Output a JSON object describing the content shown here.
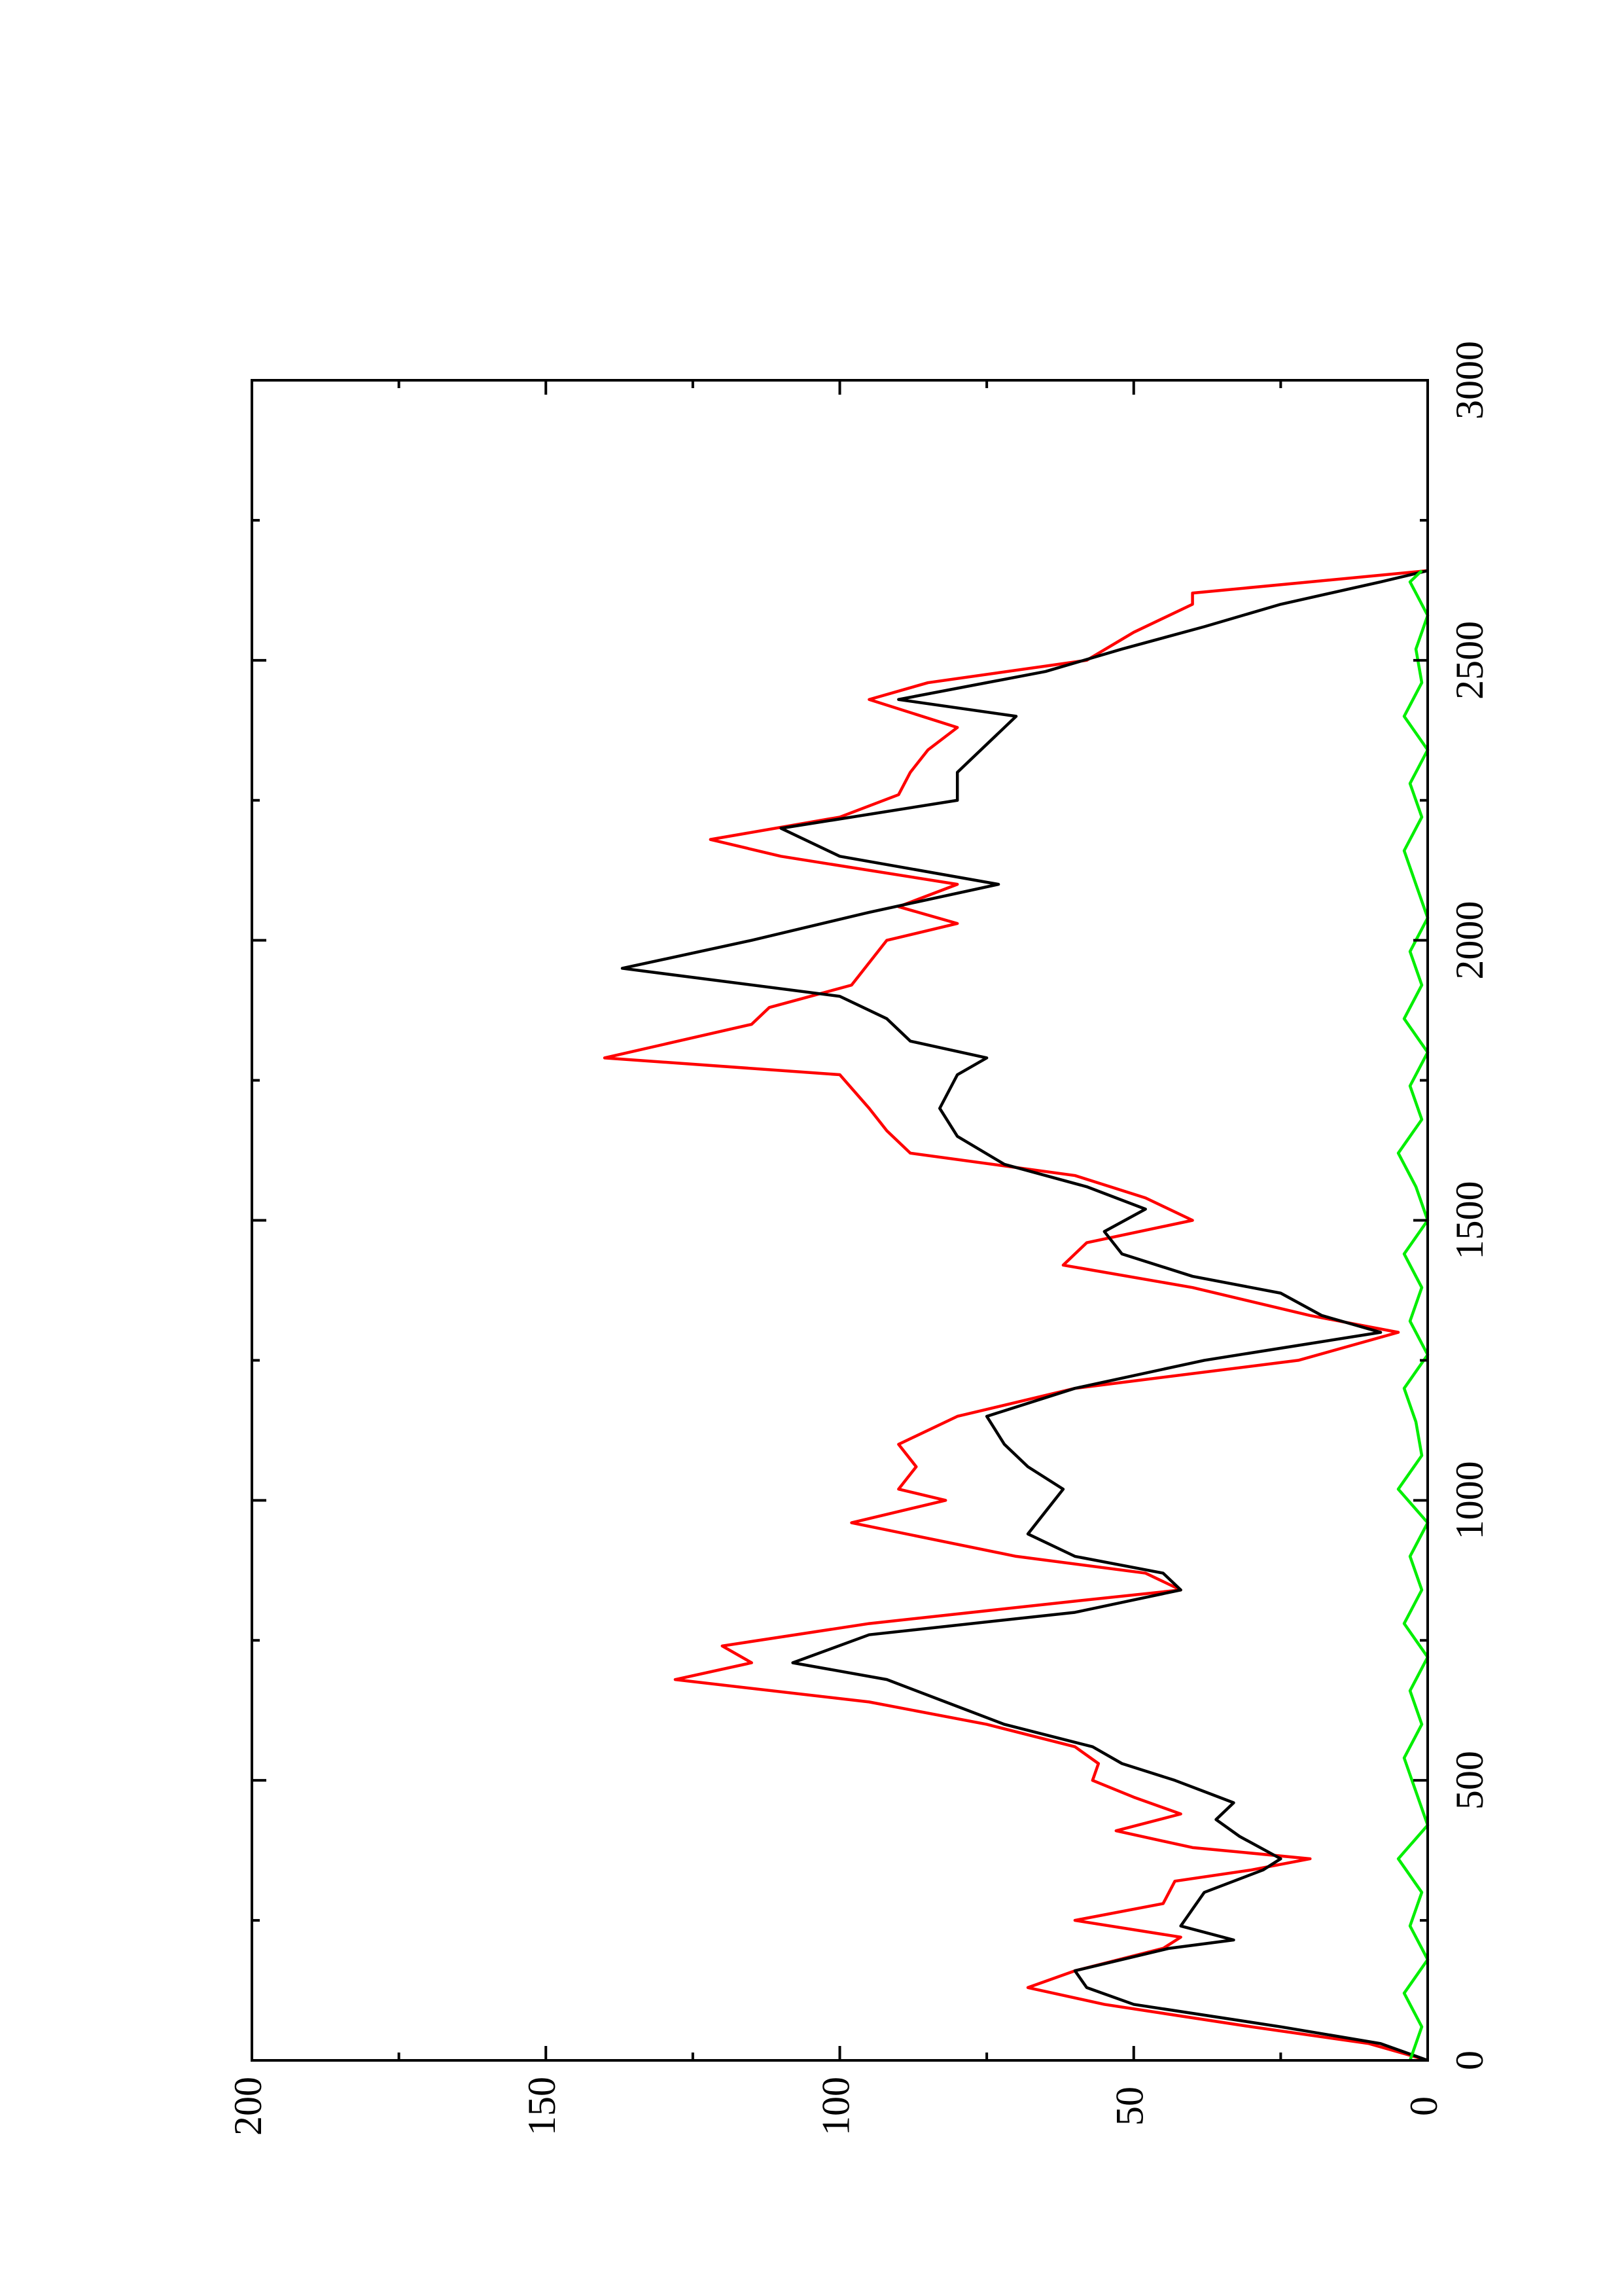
{
  "chart_data": {
    "type": "line",
    "xlim": [
      0,
      3000
    ],
    "xticks": [
      0,
      500,
      1000,
      1500,
      2000,
      2500,
      3000
    ],
    "ylim": [
      0,
      200
    ],
    "yticks": [
      0,
      50,
      100,
      150,
      200
    ],
    "series": [
      {
        "color": "#ff0000",
        "x": [
          0,
          30,
          60,
          100,
          130,
          160,
          200,
          220,
          250,
          280,
          320,
          340,
          360,
          380,
          410,
          440,
          470,
          500,
          530,
          560,
          600,
          640,
          680,
          710,
          740,
          780,
          820,
          840,
          870,
          900,
          960,
          1000,
          1020,
          1060,
          1100,
          1150,
          1200,
          1250,
          1300,
          1330,
          1380,
          1420,
          1460,
          1500,
          1540,
          1580,
          1620,
          1660,
          1700,
          1760,
          1790,
          1850,
          1880,
          1920,
          2000,
          2030,
          2060,
          2100,
          2150,
          2180,
          2220,
          2260,
          2300,
          2340,
          2380,
          2430,
          2460,
          2500,
          2550,
          2600,
          2620,
          2660
        ],
        "values": [
          0,
          10,
          30,
          55,
          68,
          60,
          45,
          42,
          60,
          45,
          43,
          30,
          20,
          40,
          53,
          42,
          50,
          57,
          56,
          60,
          75,
          95,
          128,
          115,
          120,
          95,
          60,
          42,
          48,
          70,
          98,
          82,
          90,
          87,
          90,
          80,
          60,
          22,
          5,
          20,
          40,
          62,
          58,
          40,
          48,
          60,
          88,
          92,
          95,
          100,
          140,
          115,
          112,
          98,
          92,
          80,
          90,
          80,
          110,
          122,
          100,
          90,
          88,
          85,
          80,
          95,
          85,
          58,
          50,
          40,
          40,
          0
        ]
      },
      {
        "color": "#000000",
        "x": [
          0,
          30,
          60,
          100,
          130,
          160,
          200,
          215,
          240,
          270,
          300,
          340,
          360,
          400,
          430,
          460,
          480,
          500,
          530,
          560,
          600,
          640,
          680,
          710,
          760,
          800,
          840,
          870,
          900,
          940,
          980,
          1020,
          1060,
          1100,
          1150,
          1200,
          1250,
          1280,
          1300,
          1330,
          1370,
          1400,
          1440,
          1480,
          1520,
          1560,
          1600,
          1650,
          1700,
          1760,
          1790,
          1820,
          1860,
          1900,
          1950,
          2000,
          2050,
          2100,
          2150,
          2200,
          2250,
          2300,
          2350,
          2400,
          2430,
          2480,
          2520,
          2560,
          2600,
          2640,
          2660
        ],
        "values": [
          0,
          8,
          25,
          50,
          58,
          60,
          44,
          33,
          42,
          40,
          38,
          28,
          25,
          32,
          36,
          33,
          38,
          43,
          52,
          57,
          72,
          82,
          92,
          108,
          95,
          60,
          42,
          45,
          60,
          68,
          65,
          62,
          68,
          72,
          75,
          60,
          38,
          20,
          8,
          18,
          25,
          40,
          52,
          55,
          48,
          58,
          72,
          80,
          83,
          80,
          75,
          88,
          92,
          100,
          137,
          115,
          95,
          73,
          100,
          110,
          80,
          80,
          75,
          70,
          90,
          65,
          52,
          38,
          25,
          8,
          0
        ]
      },
      {
        "color": "#00ee00",
        "x": [
          0,
          60,
          120,
          180,
          240,
          300,
          360,
          420,
          480,
          540,
          600,
          660,
          720,
          780,
          840,
          900,
          960,
          1020,
          1080,
          1140,
          1200,
          1260,
          1320,
          1380,
          1440,
          1500,
          1560,
          1620,
          1680,
          1740,
          1800,
          1860,
          1920,
          1980,
          2040,
          2100,
          2160,
          2220,
          2280,
          2340,
          2400,
          2460,
          2520,
          2580,
          2640,
          2660
        ],
        "values": [
          3,
          1,
          4,
          0,
          3,
          1,
          5,
          0,
          2,
          4,
          1,
          3,
          0,
          4,
          1,
          3,
          0,
          5,
          1,
          2,
          4,
          0,
          3,
          1,
          4,
          0,
          2,
          5,
          1,
          3,
          0,
          4,
          1,
          3,
          0,
          2,
          4,
          1,
          3,
          0,
          4,
          1,
          2,
          0,
          3,
          1
        ]
      }
    ]
  }
}
